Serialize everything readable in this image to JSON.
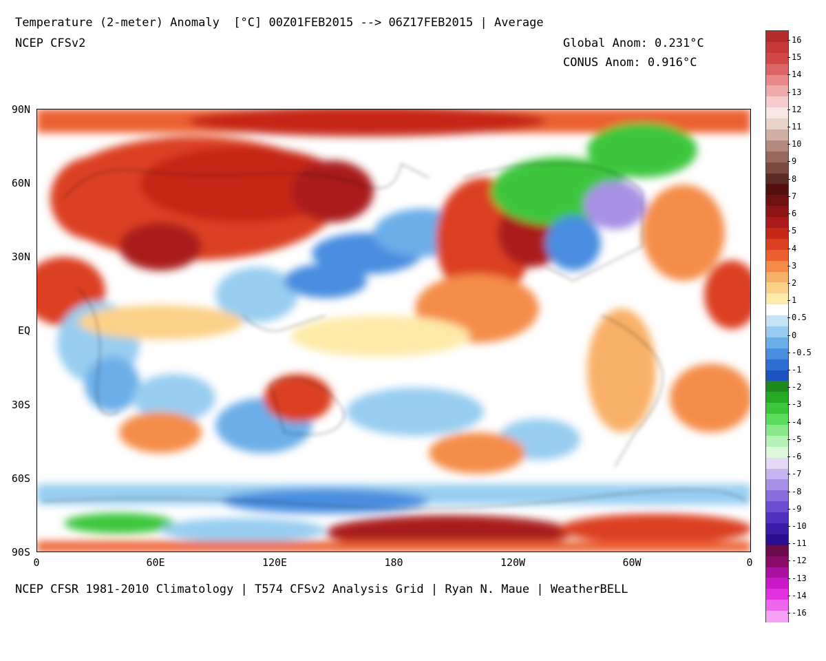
{
  "header": {
    "title": "Temperature (2-meter) Anomaly  [°C] 00Z01FEB2015 --> 06Z17FEB2015 | Average",
    "model": "NCEP CFSv2",
    "global_anom": "Global Anom: 0.231°C",
    "conus_anom": "CONUS Anom: 0.916°C"
  },
  "footer": "NCEP CFSR 1981-2010 Climatology | T574 CFSv2 Analysis Grid | Ryan N. Maue | WeatherBELL",
  "axes": {
    "lat_labels": [
      "90N",
      "60N",
      "30N",
      "EQ",
      "30S",
      "60S",
      "90S"
    ],
    "lon_labels": [
      "0",
      "60E",
      "120E",
      "180",
      "120W",
      "60W",
      "0"
    ]
  },
  "colorbar": {
    "labels": [
      "16",
      "15",
      "14",
      "13",
      "12",
      "11",
      "10",
      "9",
      "8",
      "7",
      "6",
      "5",
      "4",
      "3",
      "2",
      "1",
      "0.5",
      "0",
      "-0.5",
      "-1",
      "-2",
      "-3",
      "-4",
      "-5",
      "-6",
      "-7",
      "-8",
      "-9",
      "-10",
      "-11",
      "-12",
      "-13",
      "-14",
      "-16"
    ],
    "colors": [
      "#b52a2a",
      "#c73838",
      "#d24848",
      "#dd6464",
      "#e88888",
      "#f0aaaa",
      "#f7cccc",
      "#fbe6e6",
      "#e9d4c9",
      "#d0b0a4",
      "#b48a7e",
      "#98685c",
      "#7a4a40",
      "#5c2c24",
      "#540f0f",
      "#701010",
      "#8c1414",
      "#aa1a1a",
      "#c62818",
      "#dc4020",
      "#ec6030",
      "#f48c48",
      "#f8b068",
      "#fbd088",
      "#fdeaa8",
      "#ffffff",
      "#c4e4f6",
      "#98cdf0",
      "#6caee8",
      "#4a8ee0",
      "#2e6ed2",
      "#1e52c0",
      "#1c8a1c",
      "#26aa26",
      "#3cc63c",
      "#5cdc5c",
      "#8ae88a",
      "#b6f2b6",
      "#dcf8dc",
      "#e4daf6",
      "#c6b4f0",
      "#a890e6",
      "#8a6cdc",
      "#6c4cd0",
      "#5030c0",
      "#3a1ca8",
      "#281090",
      "#6a0a4a",
      "#8a0a6a",
      "#aa10a0",
      "#c818c8",
      "#e030e0",
      "#ee66ee",
      "#f6a0f6"
    ]
  },
  "map_fields": {
    "description_colors": {
      "warm_strong": "#8c1414",
      "warm": "#dc4020",
      "warm_mild": "#f48c48",
      "warm_weak": "#f8b068",
      "neutral": "#ffffff",
      "cool_weak": "#98cdf0",
      "cool": "#4a8ee0",
      "cold_green": "#3cc63c",
      "cold_purple": "#a890e6"
    }
  }
}
